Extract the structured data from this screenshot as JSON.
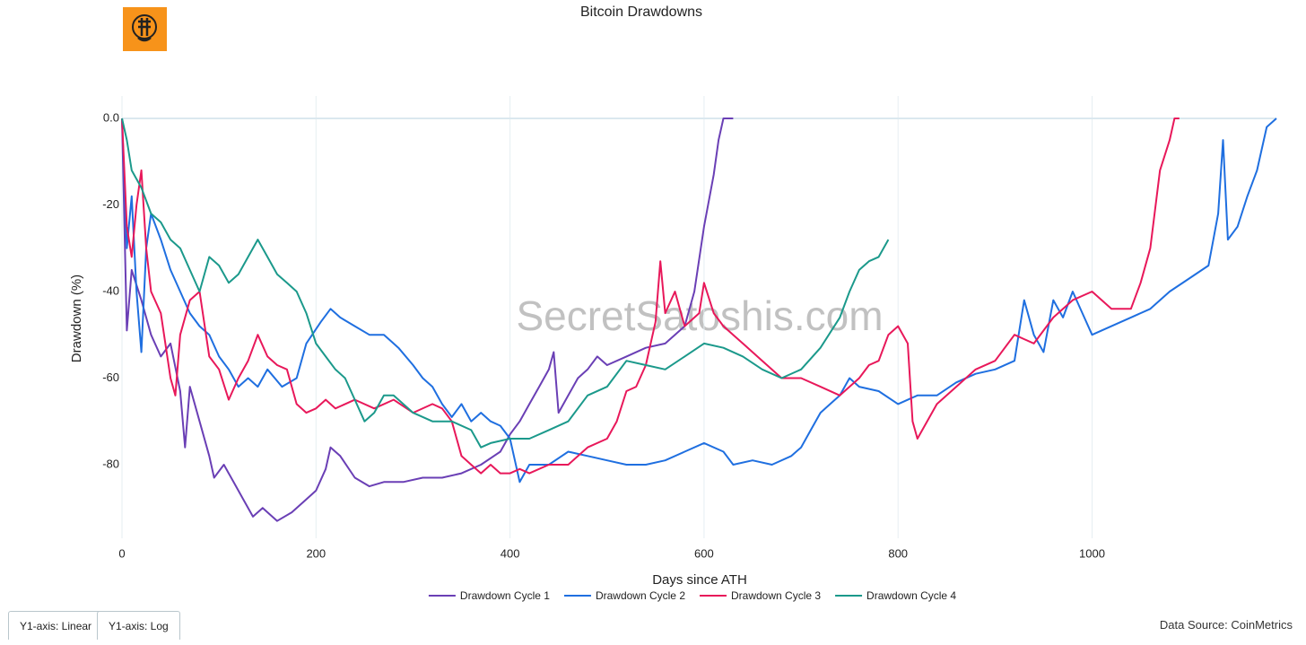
{
  "chart_data": {
    "type": "line",
    "title": "Bitcoin Drawdowns",
    "xlabel": "Days since ATH",
    "ylabel": "Drawdown (%)",
    "watermark": "SecretSatoshis.com",
    "xlim": [
      0,
      1190
    ],
    "ylim": [
      -97,
      0
    ],
    "xticks": [
      0,
      200,
      400,
      600,
      800,
      1000
    ],
    "yticks": [
      {
        "value": 0,
        "label": "0.0"
      },
      -20,
      -40,
      -60,
      -80
    ],
    "grid": "x",
    "zeroline": true,
    "legend": "bottom",
    "series": [
      {
        "name": "Drawdown Cycle 1",
        "color": "#6a3fb5",
        "x": [
          0,
          5,
          10,
          20,
          30,
          40,
          50,
          60,
          65,
          70,
          80,
          90,
          95,
          105,
          115,
          125,
          135,
          145,
          160,
          175,
          190,
          200,
          210,
          215,
          225,
          240,
          255,
          270,
          290,
          310,
          330,
          350,
          370,
          390,
          400,
          410,
          420,
          430,
          440,
          445,
          450,
          460,
          470,
          480,
          490,
          500,
          520,
          540,
          560,
          580,
          590,
          600,
          610,
          615,
          620,
          630
        ],
        "values": [
          0,
          -49,
          -35,
          -42,
          -50,
          -55,
          -52,
          -63,
          -76,
          -62,
          -70,
          -78,
          -83,
          -80,
          -84,
          -88,
          -92,
          -90,
          -93,
          -91,
          -88,
          -86,
          -81,
          -76,
          -78,
          -83,
          -85,
          -84,
          -84,
          -83,
          -83,
          -82,
          -80,
          -77,
          -73,
          -70,
          -66,
          -62,
          -58,
          -54,
          -68,
          -64,
          -60,
          -58,
          -55,
          -57,
          -55,
          -53,
          -52,
          -48,
          -40,
          -25,
          -13,
          -5,
          0,
          0
        ]
      },
      {
        "name": "Drawdown Cycle 2",
        "color": "#1f6fe0",
        "x": [
          0,
          5,
          10,
          15,
          20,
          25,
          30,
          40,
          50,
          60,
          70,
          80,
          90,
          100,
          110,
          120,
          130,
          140,
          150,
          165,
          180,
          190,
          205,
          215,
          225,
          240,
          255,
          270,
          285,
          300,
          310,
          320,
          330,
          340,
          350,
          360,
          370,
          380,
          390,
          400,
          410,
          420,
          440,
          460,
          480,
          500,
          520,
          540,
          560,
          580,
          600,
          620,
          630,
          650,
          670,
          690,
          700,
          710,
          720,
          730,
          740,
          750,
          760,
          780,
          800,
          820,
          840,
          860,
          880,
          900,
          920,
          930,
          940,
          950,
          960,
          970,
          980,
          990,
          1000,
          1020,
          1040,
          1060,
          1080,
          1100,
          1120,
          1130,
          1135,
          1140,
          1150,
          1160,
          1170,
          1180,
          1190
        ],
        "values": [
          0,
          -30,
          -18,
          -40,
          -54,
          -30,
          -22,
          -28,
          -35,
          -40,
          -45,
          -48,
          -50,
          -55,
          -58,
          -62,
          -60,
          -62,
          -58,
          -62,
          -60,
          -52,
          -47,
          -44,
          -46,
          -48,
          -50,
          -50,
          -53,
          -57,
          -60,
          -62,
          -66,
          -69,
          -66,
          -70,
          -68,
          -70,
          -71,
          -74,
          -84,
          -80,
          -80,
          -77,
          -78,
          -79,
          -80,
          -80,
          -79,
          -77,
          -75,
          -77,
          -80,
          -79,
          -80,
          -78,
          -76,
          -72,
          -68,
          -66,
          -64,
          -60,
          -62,
          -63,
          -66,
          -64,
          -64,
          -61,
          -59,
          -58,
          -56,
          -42,
          -50,
          -54,
          -42,
          -46,
          -40,
          -45,
          -50,
          -48,
          -46,
          -44,
          -40,
          -37,
          -34,
          -22,
          -5,
          -28,
          -25,
          -18,
          -12,
          -2,
          0
        ]
      },
      {
        "name": "Drawdown Cycle 3",
        "color": "#e8185a",
        "x": [
          0,
          5,
          10,
          15,
          20,
          25,
          30,
          40,
          50,
          55,
          60,
          70,
          80,
          90,
          100,
          110,
          120,
          130,
          140,
          150,
          160,
          170,
          180,
          190,
          200,
          210,
          220,
          240,
          260,
          280,
          300,
          320,
          330,
          340,
          350,
          360,
          370,
          380,
          390,
          400,
          410,
          420,
          440,
          460,
          480,
          500,
          510,
          520,
          530,
          540,
          550,
          555,
          560,
          570,
          580,
          595,
          600,
          610,
          620,
          640,
          660,
          680,
          700,
          720,
          740,
          760,
          770,
          780,
          790,
          800,
          810,
          815,
          820,
          840,
          860,
          880,
          900,
          920,
          940,
          960,
          980,
          1000,
          1020,
          1040,
          1050,
          1060,
          1070,
          1080,
          1085,
          1090
        ],
        "values": [
          0,
          -25,
          -32,
          -20,
          -12,
          -30,
          -40,
          -45,
          -60,
          -64,
          -50,
          -42,
          -40,
          -55,
          -58,
          -65,
          -60,
          -56,
          -50,
          -55,
          -57,
          -58,
          -66,
          -68,
          -67,
          -65,
          -67,
          -65,
          -67,
          -65,
          -68,
          -66,
          -67,
          -70,
          -78,
          -80,
          -82,
          -80,
          -82,
          -82,
          -81,
          -82,
          -80,
          -80,
          -76,
          -74,
          -70,
          -63,
          -62,
          -57,
          -47,
          -33,
          -45,
          -40,
          -48,
          -45,
          -38,
          -45,
          -48,
          -52,
          -56,
          -60,
          -60,
          -62,
          -64,
          -60,
          -57,
          -56,
          -50,
          -48,
          -52,
          -70,
          -74,
          -66,
          -62,
          -58,
          -56,
          -50,
          -52,
          -46,
          -42,
          -40,
          -44,
          -44,
          -38,
          -30,
          -12,
          -5,
          0,
          0
        ]
      },
      {
        "name": "Drawdown Cycle 4",
        "color": "#1b998b",
        "x": [
          0,
          5,
          10,
          20,
          30,
          40,
          50,
          60,
          70,
          80,
          90,
          100,
          110,
          120,
          130,
          140,
          150,
          160,
          170,
          180,
          190,
          200,
          210,
          220,
          230,
          240,
          250,
          260,
          270,
          280,
          290,
          300,
          320,
          340,
          360,
          370,
          380,
          400,
          420,
          440,
          460,
          480,
          500,
          520,
          540,
          560,
          580,
          600,
          620,
          640,
          660,
          680,
          700,
          720,
          740,
          750,
          760,
          770,
          780,
          790
        ],
        "values": [
          0,
          -5,
          -12,
          -16,
          -22,
          -24,
          -28,
          -30,
          -35,
          -40,
          -32,
          -34,
          -38,
          -36,
          -32,
          -28,
          -32,
          -36,
          -38,
          -40,
          -45,
          -52,
          -55,
          -58,
          -60,
          -65,
          -70,
          -68,
          -64,
          -64,
          -66,
          -68,
          -70,
          -70,
          -72,
          -76,
          -75,
          -74,
          -74,
          -72,
          -70,
          -64,
          -62,
          -56,
          -57,
          -58,
          -55,
          -52,
          -53,
          -55,
          -58,
          -60,
          -58,
          -53,
          -46,
          -40,
          -35,
          -33,
          -32,
          -28
        ]
      }
    ]
  },
  "buttons": [
    "Y1-axis: Linear",
    "Y1-axis: Log"
  ],
  "source": "Data Source: CoinMetrics"
}
